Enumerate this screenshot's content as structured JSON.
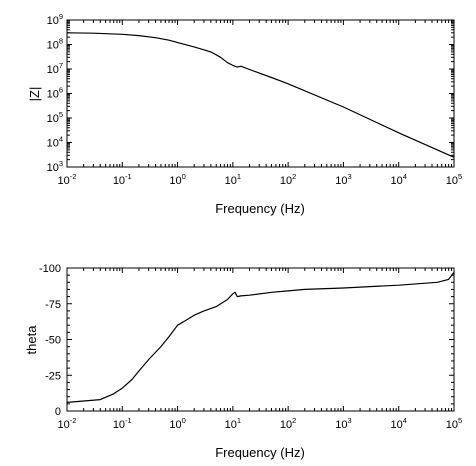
{
  "chart_data": [
    {
      "type": "line",
      "xlabel": "Frequency (Hz)",
      "ylabel": "|Z|",
      "xscale": "log",
      "yscale": "log",
      "xlim": [
        0.01,
        100000
      ],
      "ylim": [
        1000,
        1000000000
      ],
      "grid": false,
      "xticks": [
        {
          "base": "10",
          "exp": "-2"
        },
        {
          "base": "10",
          "exp": "-1"
        },
        {
          "base": "10",
          "exp": "0"
        },
        {
          "base": "10",
          "exp": "1"
        },
        {
          "base": "10",
          "exp": "2"
        },
        {
          "base": "10",
          "exp": "3"
        },
        {
          "base": "10",
          "exp": "4"
        },
        {
          "base": "10",
          "exp": "5"
        }
      ],
      "yticks": [
        {
          "base": "10",
          "exp": "3"
        },
        {
          "base": "10",
          "exp": "4"
        },
        {
          "base": "10",
          "exp": "5"
        },
        {
          "base": "10",
          "exp": "6"
        },
        {
          "base": "10",
          "exp": "7"
        },
        {
          "base": "10",
          "exp": "8"
        },
        {
          "base": "10",
          "exp": "9"
        }
      ],
      "series": [
        {
          "x": [
            0.01,
            0.03,
            0.1,
            0.2,
            0.4,
            0.7,
            1,
            2,
            4,
            6,
            8,
            10,
            12,
            14,
            20,
            50,
            100,
            1000,
            10000,
            100000
          ],
          "y": [
            300000000,
            290000000,
            260000000,
            230000000,
            190000000,
            150000000,
            120000000,
            80000000,
            50000000,
            30000000,
            18000000,
            14000000,
            12000000,
            13000000,
            9500000,
            4500000,
            2500000,
            280000,
            25000,
            2500
          ]
        }
      ]
    },
    {
      "type": "line",
      "xlabel": "Frequency (Hz)",
      "ylabel": "theta",
      "xscale": "log",
      "yscale": "linear",
      "xlim": [
        0.01,
        100000
      ],
      "ylim": [
        0,
        -100
      ],
      "grid": false,
      "xticks": [
        {
          "base": "10",
          "exp": "-2"
        },
        {
          "base": "10",
          "exp": "-1"
        },
        {
          "base": "10",
          "exp": "0"
        },
        {
          "base": "10",
          "exp": "1"
        },
        {
          "base": "10",
          "exp": "2"
        },
        {
          "base": "10",
          "exp": "3"
        },
        {
          "base": "10",
          "exp": "4"
        },
        {
          "base": "10",
          "exp": "5"
        }
      ],
      "yticks": [
        "0",
        "-25",
        "-50",
        "-75",
        "-100"
      ],
      "series": [
        {
          "x": [
            0.01,
            0.02,
            0.04,
            0.07,
            0.1,
            0.15,
            0.2,
            0.3,
            0.5,
            0.7,
            1,
            1.5,
            2,
            3,
            5,
            8,
            10,
            11,
            12,
            14,
            20,
            50,
            100,
            200,
            1000,
            3000,
            10000,
            50000,
            80000,
            100000
          ],
          "y": [
            -6,
            -7,
            -8,
            -12,
            -16,
            -22,
            -28,
            -36,
            -45,
            -52,
            -60,
            -64,
            -67,
            -70,
            -73,
            -78,
            -82,
            -83,
            -80,
            -80.5,
            -81,
            -83,
            -84,
            -85,
            -86,
            -87,
            -88,
            -90,
            -92,
            -97
          ]
        }
      ]
    }
  ]
}
